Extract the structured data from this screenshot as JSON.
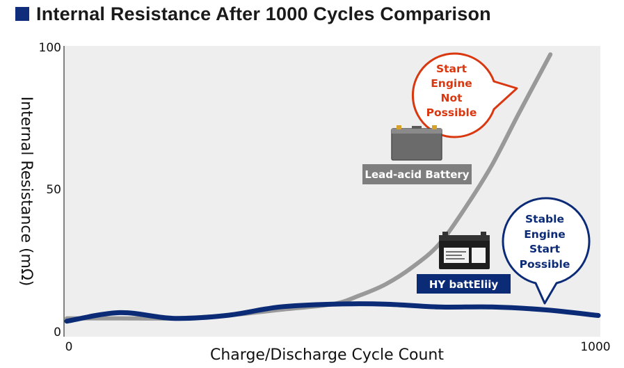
{
  "title": "Internal Resistance After 1000 Cycles Comparison",
  "colors": {
    "title_marker": "#0f2d7a",
    "plot_bg": "#eeeeee",
    "lead_acid": "#999999",
    "hy": "#0c2b77",
    "warning": "#d9370f",
    "lead_tag_bg": "#7e7e7e",
    "hy_tag_bg": "#0c2b77"
  },
  "chart_data": {
    "type": "line",
    "xlabel": "Charge/Discharge Cycle Count",
    "ylabel": "Internal Resistance (mΩ)",
    "xlim": [
      0,
      1000
    ],
    "ylim": [
      0,
      100
    ],
    "x_ticks": [
      "0",
      "1000"
    ],
    "y_ticks": [
      "0",
      "50",
      "100"
    ],
    "grid": false,
    "series": [
      {
        "name": "Lead-acid Battery",
        "x": [
          0,
          100,
          200,
          300,
          400,
          500,
          550,
          600,
          650,
          700,
          750,
          800,
          850,
          910
        ],
        "values": [
          5,
          5,
          5,
          6,
          8,
          10,
          13,
          17,
          23,
          31,
          44,
          59,
          77,
          98
        ]
      },
      {
        "name": "HY battEliiy",
        "x": [
          0,
          100,
          200,
          300,
          400,
          500,
          600,
          700,
          800,
          900,
          1000
        ],
        "values": [
          4,
          7,
          5,
          6,
          9,
          10,
          10,
          9,
          9,
          8,
          6
        ]
      }
    ],
    "annotations": [
      {
        "lines": [
          "Start",
          "Engine",
          "Not",
          "Possible"
        ],
        "series": "Lead-acid Battery"
      },
      {
        "lines": [
          "Stable",
          "Engine",
          "Start",
          "Possible"
        ],
        "series": "HY battEliiy"
      }
    ]
  }
}
